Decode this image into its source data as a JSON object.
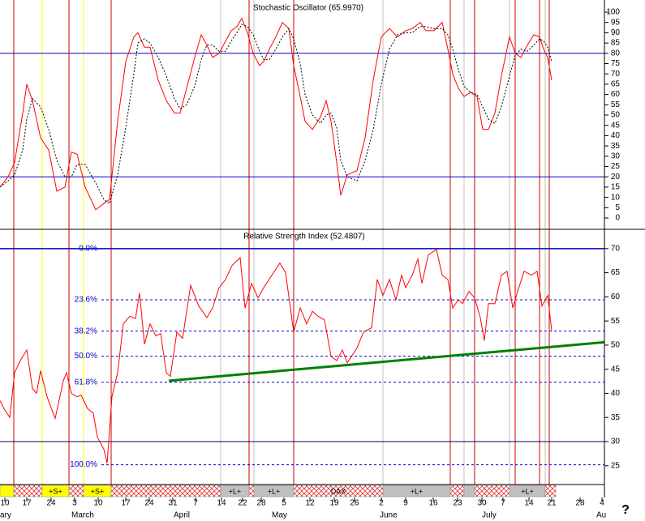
{
  "chart_data": [
    {
      "type": "line",
      "title": "Stochastic Oscillator (65.9970)",
      "xlim": [
        0,
        149
      ],
      "ylim": [
        -5.5,
        105.9
      ],
      "yticks": [
        100,
        95,
        90,
        85,
        80,
        75,
        70,
        65,
        60,
        55,
        50,
        45,
        40,
        35,
        30,
        25,
        20,
        15,
        10,
        5,
        0
      ],
      "hlines": [
        80,
        20
      ],
      "hline_color": "#0000cc",
      "x": [
        0,
        2,
        3.6,
        5.6,
        6.6,
        8,
        10,
        12,
        14,
        16,
        17.6,
        19,
        21,
        23.6,
        25.6,
        27,
        29,
        31,
        33,
        34,
        35.6,
        37,
        39,
        41,
        43,
        44.4,
        46,
        48,
        49.6,
        51,
        52.4,
        54,
        55.6,
        57,
        58.4,
        59.6,
        61,
        62.4,
        64,
        65,
        66.4,
        68,
        69.6,
        71.2,
        72.4,
        74,
        75.2,
        77,
        79,
        80.4,
        81.6,
        83,
        84,
        85.6,
        88,
        90,
        92,
        94,
        96,
        98,
        100,
        101.6,
        103.6,
        105,
        107,
        109,
        110.4,
        111.6,
        113,
        114.4,
        116,
        117.6,
        119,
        120.4,
        122,
        123.6,
        125.6,
        127,
        128.4,
        130,
        131.6,
        133,
        134,
        135,
        136
      ],
      "series": [
        {
          "color": "#ff0000",
          "dash": false,
          "values": [
            15,
            20,
            27,
            51,
            65,
            57,
            39,
            33,
            13,
            15,
            32,
            31,
            15,
            4,
            7,
            9,
            47,
            76,
            88,
            90,
            83,
            83,
            67,
            57,
            51,
            51,
            63,
            78,
            89,
            84,
            78,
            80,
            86,
            91,
            93,
            97,
            90,
            80,
            74,
            76,
            82,
            88,
            95,
            92,
            74,
            59,
            47,
            43,
            49,
            57,
            47,
            27,
            11,
            21,
            23,
            39,
            67,
            88,
            92,
            88,
            91,
            92,
            95,
            91,
            91,
            95,
            82,
            70,
            63,
            59,
            61,
            59,
            43,
            43,
            51,
            69,
            88,
            80,
            78,
            84,
            89,
            88,
            82,
            78,
            67
          ]
        },
        {
          "color": "#000000",
          "dash": true,
          "values": [
            15,
            18,
            21,
            33,
            48,
            58,
            54,
            43,
            28,
            20,
            20,
            26,
            26,
            17,
            9,
            7,
            21,
            44,
            70,
            85,
            87,
            85,
            78,
            69,
            58,
            53,
            55,
            64,
            77,
            84,
            84,
            81,
            81,
            86,
            90,
            94,
            93,
            89,
            81,
            77,
            77,
            82,
            88,
            92,
            87,
            75,
            60,
            50,
            46,
            50,
            51,
            44,
            28,
            20,
            18,
            28,
            43,
            65,
            82,
            89,
            90,
            90,
            93,
            93,
            92,
            92,
            89,
            82,
            72,
            64,
            61,
            60,
            54,
            48,
            46,
            54,
            69,
            79,
            82,
            81,
            84,
            87,
            86,
            83,
            76
          ]
        }
      ]
    },
    {
      "type": "line",
      "title": "Relative Strength Index (52.4807)",
      "xlim": [
        0,
        149
      ],
      "ylim": [
        21.1,
        74.0
      ],
      "yticks": [
        70,
        65,
        60,
        55,
        50,
        45,
        40,
        35,
        30,
        25
      ],
      "levels": [
        {
          "value": 70,
          "label": "0.0%"
        },
        {
          "value": 59.4,
          "label": "23.6%"
        },
        {
          "value": 52.9,
          "label": "38.2%"
        },
        {
          "value": 47.7,
          "label": "50.0%"
        },
        {
          "value": 42.3,
          "label": "61.8%"
        },
        {
          "value": 25.2,
          "label": "100.0%"
        }
      ],
      "level_color": "#0000cc",
      "hlines": [
        30
      ],
      "hline_color": "#000066",
      "trendline": {
        "x": [
          41.6,
          149
        ],
        "values": [
          42.6,
          50.6
        ],
        "color": "#008000"
      },
      "x": [
        0,
        1,
        2.4,
        3.6,
        5,
        6.6,
        8,
        9,
        10,
        11.6,
        13.6,
        15.6,
        16.4,
        17.6,
        19,
        20,
        21.6,
        23,
        24,
        25.6,
        26.4,
        27.6,
        29,
        30.4,
        32,
        33.4,
        34.4,
        35.6,
        37,
        38.4,
        39.6,
        41,
        42,
        43.6,
        45,
        47,
        49,
        51,
        52.4,
        54,
        55.6,
        57.2,
        59.2,
        60.4,
        62,
        63.6,
        65,
        67,
        69,
        70.4,
        72.4,
        74,
        75.6,
        77,
        78.4,
        80,
        81.6,
        83,
        84.4,
        85.6,
        88,
        89.6,
        91.6,
        93,
        94.4,
        96,
        97.6,
        99,
        100,
        101.6,
        103,
        104,
        105.6,
        107.6,
        109,
        110.4,
        111.6,
        113,
        114,
        115.6,
        117,
        118.4,
        119.4,
        120.4,
        122,
        123.6,
        125,
        126.4,
        127.6,
        129.2,
        131,
        132.4,
        133.6,
        135,
        136
      ],
      "series": [
        {
          "color": "#ff0000",
          "values": [
            38.5,
            36.8,
            35,
            44.3,
            46.8,
            49,
            41,
            40,
            44.7,
            39.3,
            34.8,
            42.6,
            44.3,
            40,
            39.3,
            39.6,
            36.8,
            35.9,
            30.9,
            28.4,
            25.5,
            39.3,
            44.3,
            54.4,
            56,
            55.5,
            60.8,
            50.2,
            54.4,
            51.9,
            52.4,
            44.3,
            43.5,
            52.7,
            51.4,
            62.4,
            58.1,
            55.7,
            57.7,
            61.9,
            63.6,
            66.5,
            68.1,
            57.7,
            62.8,
            59.8,
            61.9,
            64.5,
            67,
            65,
            52.7,
            57.7,
            54.4,
            57,
            56,
            55.2,
            47.7,
            46.8,
            49,
            46.3,
            49.4,
            52.7,
            53.6,
            63.6,
            60.3,
            63.6,
            59.4,
            64.5,
            61.9,
            64.5,
            67.8,
            62.8,
            68.7,
            69.8,
            64.5,
            63.6,
            57.7,
            59.4,
            58.6,
            61.1,
            59.8,
            55.7,
            50.9,
            58.6,
            58.6,
            64.5,
            65.3,
            57.7,
            61.1,
            65.3,
            64.5,
            65.3,
            58.1,
            60.3,
            53
          ]
        }
      ],
      "xticks": [
        {
          "value": 1.2,
          "label": "10"
        },
        {
          "value": 6.6,
          "label": "17"
        },
        {
          "value": 12.6,
          "label": "24"
        },
        {
          "value": 18.4,
          "label": "3"
        },
        {
          "value": 24.2,
          "label": "10"
        },
        {
          "value": 31,
          "label": "17"
        },
        {
          "value": 36.8,
          "label": "24"
        },
        {
          "value": 42.6,
          "label": "31"
        },
        {
          "value": 48.2,
          "label": "7"
        },
        {
          "value": 54.6,
          "label": "14"
        },
        {
          "value": 59.8,
          "label": "22"
        },
        {
          "value": 64.4,
          "label": "28"
        },
        {
          "value": 70,
          "label": "5"
        },
        {
          "value": 76.4,
          "label": "12"
        },
        {
          "value": 82.4,
          "label": "19"
        },
        {
          "value": 87.4,
          "label": "26"
        },
        {
          "value": 94,
          "label": "2"
        },
        {
          "value": 100,
          "label": "9"
        },
        {
          "value": 106.8,
          "label": "16"
        },
        {
          "value": 112.8,
          "label": "23"
        },
        {
          "value": 118.8,
          "label": "30"
        },
        {
          "value": 124,
          "label": "7"
        },
        {
          "value": 130.4,
          "label": "14"
        },
        {
          "value": 136,
          "label": "21"
        },
        {
          "value": 143,
          "label": "28"
        },
        {
          "value": 148.4,
          "label": "4"
        }
      ],
      "months": [
        {
          "value": 0,
          "label": "ary"
        },
        {
          "value": 17.6,
          "label": "March"
        },
        {
          "value": 42.8,
          "label": "April"
        },
        {
          "value": 67,
          "label": "May"
        },
        {
          "value": 93.6,
          "label": "June"
        },
        {
          "value": 118.8,
          "label": "July"
        },
        {
          "value": 147,
          "label": "Au"
        }
      ]
    }
  ],
  "event_lines": [
    {
      "x": 3.4,
      "color": "#cc0000"
    },
    {
      "x": 17,
      "color": "#cc0000"
    },
    {
      "x": 27.4,
      "color": "#cc0000"
    },
    {
      "x": 61.4,
      "color": "#cc0000"
    },
    {
      "x": 72.4,
      "color": "#cc0000"
    },
    {
      "x": 111,
      "color": "#cc0000"
    },
    {
      "x": 117,
      "color": "#cc0000"
    },
    {
      "x": 127,
      "color": "#cc0000"
    },
    {
      "x": 133,
      "color": "#cc0000"
    },
    {
      "x": 135.4,
      "color": "#cc0000"
    },
    {
      "x": 10.4,
      "color": "#ffff00"
    },
    {
      "x": 20.6,
      "color": "#ffff00"
    },
    {
      "x": 54.4,
      "color": "#c0c0c0"
    },
    {
      "x": 62.6,
      "color": "#c0c0c0"
    },
    {
      "x": 94.4,
      "color": "#c0c0c0"
    },
    {
      "x": 114.4,
      "color": "#c0c0c0"
    },
    {
      "x": 125.6,
      "color": "#c0c0c0"
    },
    {
      "x": 134.4,
      "color": "#c0c0c0"
    }
  ],
  "event_bar": [
    {
      "start": 0,
      "end": 3.4,
      "fill": "#ffff00"
    },
    {
      "start": 3.4,
      "end": 10.4,
      "fill": "hatch"
    },
    {
      "start": 10.4,
      "end": 17,
      "fill": "#ffff00",
      "label": "+S+"
    },
    {
      "start": 17,
      "end": 20.6,
      "fill": "hatch"
    },
    {
      "start": 20.6,
      "end": 27.4,
      "fill": "#ffff00",
      "label": "+S+"
    },
    {
      "start": 27.4,
      "end": 54.4,
      "fill": "hatch"
    },
    {
      "start": 54.4,
      "end": 61.4,
      "fill": "#c0c0c0",
      "label": "+L+"
    },
    {
      "start": 61.4,
      "end": 62.6,
      "fill": "hatch"
    },
    {
      "start": 62.6,
      "end": 72.4,
      "fill": "#c0c0c0",
      "label": "+L+"
    },
    {
      "start": 72.4,
      "end": 94.4,
      "fill": "hatch",
      "label": "DAX"
    },
    {
      "start": 94.4,
      "end": 111,
      "fill": "#c0c0c0",
      "label": "+L+"
    },
    {
      "start": 111,
      "end": 114.4,
      "fill": "hatch"
    },
    {
      "start": 114.4,
      "end": 117,
      "fill": "#c0c0c0"
    },
    {
      "start": 117,
      "end": 125.6,
      "fill": "hatch"
    },
    {
      "start": 125.6,
      "end": 134.4,
      "fill": "#c0c0c0",
      "label": "+L+"
    },
    {
      "start": 134.4,
      "end": 137,
      "fill": "hatch"
    }
  ],
  "help_icon": "?"
}
